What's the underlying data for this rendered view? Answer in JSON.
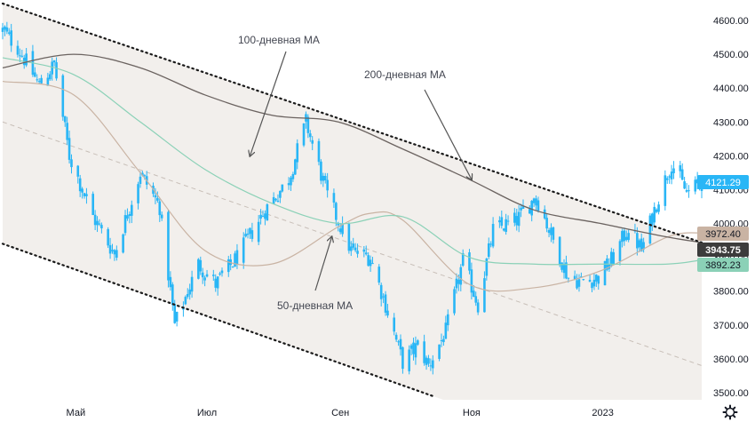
{
  "chart_data": {
    "type": "candlestick",
    "title": "",
    "xlabel": "",
    "ylabel": "",
    "ylim": [
      3480,
      4650
    ],
    "x_ticks": [
      {
        "label": "Май",
        "date": "2022-05-01"
      },
      {
        "label": "Июл",
        "date": "2022-07-01"
      },
      {
        "label": "Сен",
        "date": "2022-09-01"
      },
      {
        "label": "Ноя",
        "date": "2022-11-01"
      },
      {
        "label": "2023",
        "date": "2023-01-01"
      }
    ],
    "y_ticks": [
      3500,
      3600,
      3700,
      3800,
      3900,
      4000,
      4100,
      4200,
      4300,
      4400,
      4500,
      4600
    ],
    "y_tick_labels": [
      "3500.00",
      "3600.00",
      "3700.00",
      "3800.00",
      "3900.00",
      "4000.00",
      "4100.00",
      "4200.00",
      "4300.00",
      "4400.00",
      "4500.00",
      "4600.00"
    ],
    "price_path": [
      [
        "2022-03-28",
        4570
      ],
      [
        "2022-04-04",
        4520
      ],
      [
        "2022-04-14",
        4410
      ],
      [
        "2022-04-21",
        4470
      ],
      [
        "2022-04-28",
        4200
      ],
      [
        "2022-05-09",
        4020
      ],
      [
        "2022-05-19",
        3910
      ],
      [
        "2022-05-31",
        4150
      ],
      [
        "2022-06-09",
        4050
      ],
      [
        "2022-06-16",
        3700
      ],
      [
        "2022-06-27",
        3880
      ],
      [
        "2022-07-05",
        3820
      ],
      [
        "2022-07-15",
        3900
      ],
      [
        "2022-07-28",
        4040
      ],
      [
        "2022-08-08",
        4130
      ],
      [
        "2022-08-16",
        4300
      ],
      [
        "2022-08-26",
        4080
      ],
      [
        "2022-09-06",
        3920
      ],
      [
        "2022-09-15",
        3900
      ],
      [
        "2022-09-22",
        3760
      ],
      [
        "2022-09-30",
        3590
      ],
      [
        "2022-10-07",
        3640
      ],
      [
        "2022-10-12",
        3580
      ],
      [
        "2022-10-20",
        3680
      ],
      [
        "2022-10-28",
        3890
      ],
      [
        "2022-11-04",
        3760
      ],
      [
        "2022-11-11",
        3980
      ],
      [
        "2022-11-22",
        4010
      ],
      [
        "2022-12-01",
        4080
      ],
      [
        "2022-12-09",
        3950
      ],
      [
        "2022-12-16",
        3840
      ],
      [
        "2022-12-22",
        3830
      ],
      [
        "2022-12-30",
        3840
      ],
      [
        "2023-01-06",
        3900
      ],
      [
        "2023-01-13",
        3990
      ],
      [
        "2023-01-19",
        3920
      ],
      [
        "2023-01-26",
        4060
      ],
      [
        "2023-02-02",
        4180
      ],
      [
        "2023-02-09",
        4090
      ],
      [
        "2023-02-16",
        4121
      ]
    ],
    "series": [
      {
        "name": "50-дневная MA",
        "color": "#c9b3a3",
        "points": [
          [
            "2022-03-28",
            4420
          ],
          [
            "2022-04-30",
            4380
          ],
          [
            "2022-05-31",
            4150
          ],
          [
            "2022-06-30",
            3920
          ],
          [
            "2022-07-31",
            3880
          ],
          [
            "2022-08-31",
            3990
          ],
          [
            "2022-09-15",
            4030
          ],
          [
            "2022-09-30",
            4010
          ],
          [
            "2022-10-31",
            3820
          ],
          [
            "2022-11-30",
            3810
          ],
          [
            "2022-12-31",
            3860
          ],
          [
            "2023-01-31",
            3960
          ],
          [
            "2023-02-16",
            3972.4
          ]
        ]
      },
      {
        "name": "100-дневная MA",
        "color": "#8bd1b7",
        "points": [
          [
            "2022-03-28",
            4490
          ],
          [
            "2022-04-30",
            4440
          ],
          [
            "2022-05-31",
            4300
          ],
          [
            "2022-06-30",
            4160
          ],
          [
            "2022-07-31",
            4060
          ],
          [
            "2022-08-31",
            4000
          ],
          [
            "2022-09-30",
            4020
          ],
          [
            "2022-10-31",
            3900
          ],
          [
            "2022-11-30",
            3880
          ],
          [
            "2022-12-31",
            3880
          ],
          [
            "2023-01-31",
            3880
          ],
          [
            "2023-02-16",
            3892.23
          ]
        ]
      },
      {
        "name": "200-дневная MA",
        "color": "#6b6360",
        "points": [
          [
            "2022-03-28",
            4460
          ],
          [
            "2022-04-30",
            4500
          ],
          [
            "2022-05-31",
            4460
          ],
          [
            "2022-06-30",
            4380
          ],
          [
            "2022-07-31",
            4320
          ],
          [
            "2022-08-31",
            4300
          ],
          [
            "2022-09-30",
            4220
          ],
          [
            "2022-10-31",
            4130
          ],
          [
            "2022-11-30",
            4040
          ],
          [
            "2022-12-31",
            4000
          ],
          [
            "2023-01-31",
            3960
          ],
          [
            "2023-02-16",
            3943.75
          ]
        ]
      }
    ],
    "channel": {
      "upper": [
        [
          "2022-03-28",
          4650
        ],
        [
          "2023-02-16",
          3943.75
        ]
      ],
      "lower": [
        [
          "2022-03-28",
          3940
        ],
        [
          "2022-10-14",
          3490
        ]
      ],
      "mid": [
        [
          "2022-03-28",
          4300
        ],
        [
          "2023-02-16",
          3580
        ]
      ]
    },
    "annotations": [
      {
        "text": "100-дневная MA",
        "points_to": [
          "2022-07-21",
          4200
        ]
      },
      {
        "text": "200-дневная MA",
        "points_to": [
          "2022-11-01",
          4130
        ]
      },
      {
        "text": "50-дневная MA",
        "points_to": [
          "2022-08-28",
          3960
        ]
      }
    ],
    "price_badges": [
      {
        "label": "4121.29",
        "value": 4121.29,
        "bg": "#29b6f6",
        "fg": "#ffffff"
      },
      {
        "label": "3972.40",
        "value": 3972.4,
        "bg": "#c9b3a3",
        "fg": "#131722"
      },
      {
        "label": "3943.75",
        "value": 3943.75,
        "bg": "#3c3c3c",
        "fg": "#ffffff"
      },
      {
        "label": "3892.23",
        "value": 3892.23,
        "bg": "#8bd1b7",
        "fg": "#131722"
      }
    ],
    "colors": {
      "candle": "#29b6f6",
      "channel_fill": "#f2efec",
      "channel_line": "#1b1b1b",
      "mid_line": "#c8bfb8",
      "arrow": "#555555"
    },
    "settings_icon": "gear-icon"
  }
}
